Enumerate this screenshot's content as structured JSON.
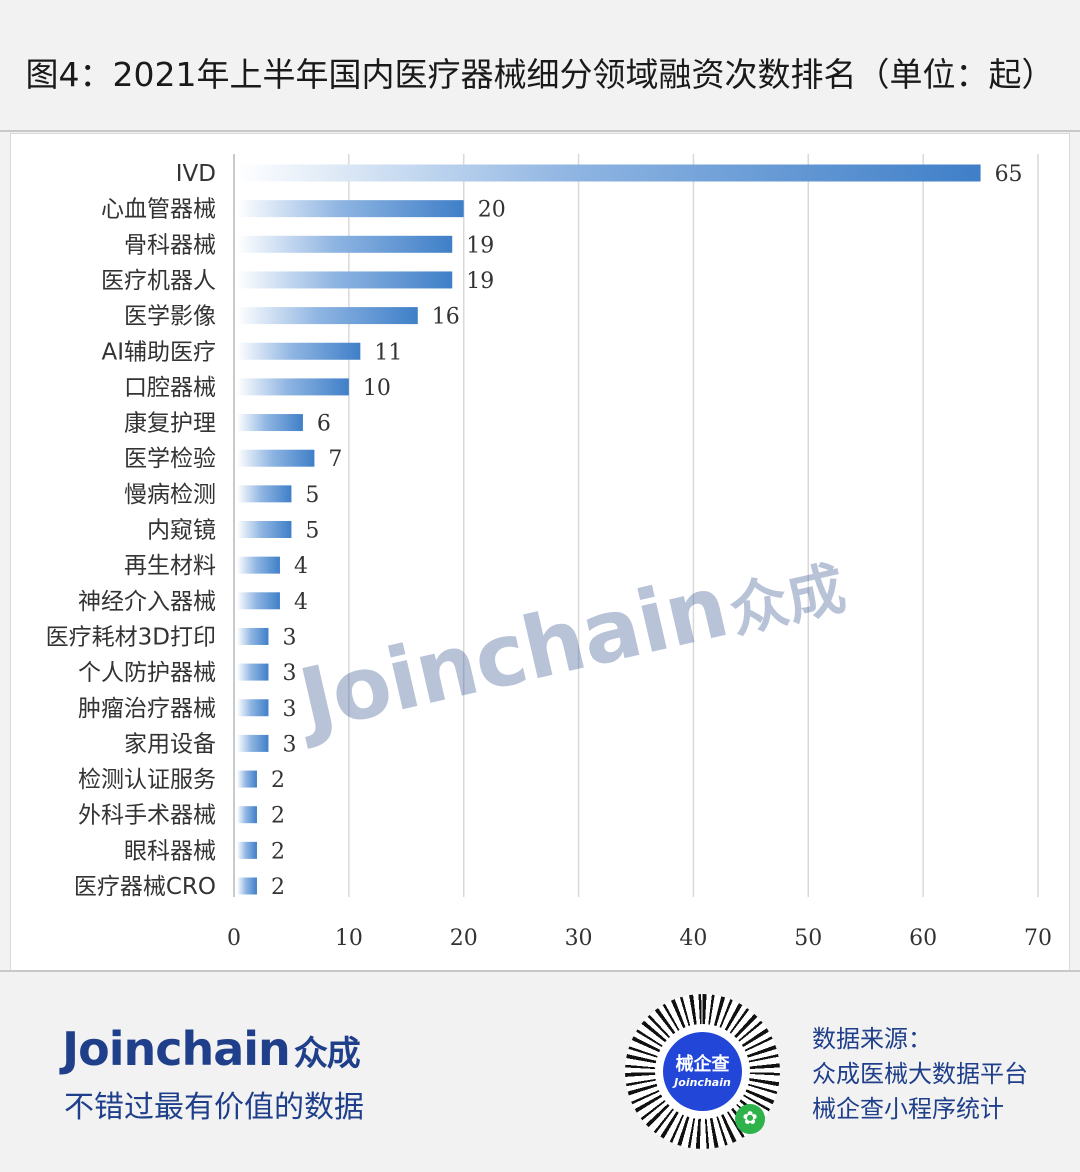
{
  "title": "图4：2021年上半年国内医疗器械细分领域融资次数排名（单位：起）",
  "chart_data": {
    "type": "bar",
    "orientation": "horizontal",
    "title": "图4：2021年上半年国内医疗器械细分领域融资次数排名（单位：起）",
    "xlabel": "",
    "ylabel": "",
    "xlim": [
      0,
      70
    ],
    "x_ticks": [
      0,
      10,
      20,
      30,
      40,
      50,
      60,
      70
    ],
    "grid": "vertical",
    "bar_color": "#3f7fc8",
    "categories": [
      "IVD",
      "心血管器械",
      "骨科器械",
      "医疗机器人",
      "医学影像",
      "AI辅助医疗",
      "口腔器械",
      "康复护理",
      "医学检验",
      "慢病检测",
      "内窥镜",
      "再生材料",
      "神经介入器械",
      "医疗耗材3D打印",
      "个人防护器械",
      "肿瘤治疗器械",
      "家用设备",
      "检测认证服务",
      "外科手术器械",
      "眼科器械",
      "医疗器械CRO"
    ],
    "values": [
      65,
      20,
      19,
      19,
      16,
      11,
      10,
      6,
      7,
      5,
      5,
      4,
      4,
      3,
      3,
      3,
      3,
      2,
      2,
      2,
      2
    ]
  },
  "watermark": {
    "latin": "Joinchain",
    "cn": "众成",
    "reg": "®"
  },
  "footer": {
    "logo_latin": "Joinchain",
    "logo_reg": "®",
    "logo_cn": "众成",
    "slogan": "不错过最有价值的数据",
    "qr_title": "械企查",
    "qr_sub": "Joinchain",
    "source_lines": [
      "数据来源：",
      "众成医械大数据平台",
      "械企查小程序统计"
    ]
  }
}
